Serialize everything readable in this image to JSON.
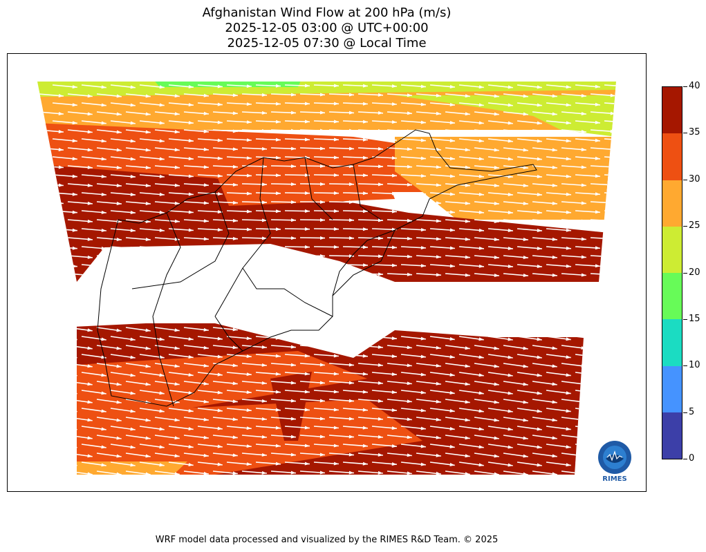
{
  "title": {
    "line1": "Afghanistan Wind Flow at 200 hPa (m/s)",
    "line2": "2025-12-05 03:00 @ UTC+00:00",
    "line3": "2025-12-05 07:30 @ Local Time"
  },
  "colorbar": {
    "ticks": [
      "0",
      "5",
      "10",
      "15",
      "20",
      "25",
      "30",
      "35",
      "40"
    ],
    "colors": [
      "#3c3fa8",
      "#4593ff",
      "#1bdcc2",
      "#67fb58",
      "#cdec33",
      "#ffa930",
      "#ee5012",
      "#a51700"
    ]
  },
  "logo": {
    "text": "RIMES"
  },
  "footer": "WRF model data processed and visualized by the RIMES R&D Team. © 2025"
}
